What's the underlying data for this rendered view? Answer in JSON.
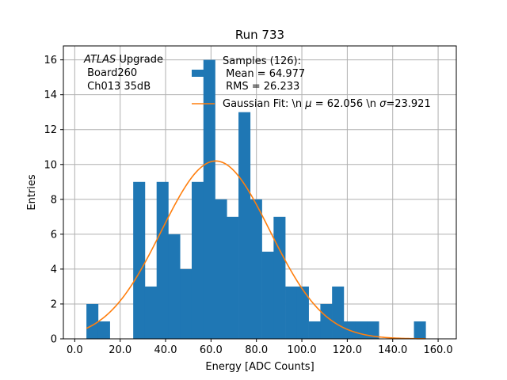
{
  "chart_data": {
    "type": "bar",
    "title": "Run 733",
    "xlabel": "Energy [ADC Counts]",
    "ylabel": "Entries",
    "xlim": [
      -5,
      168
    ],
    "ylim": [
      0,
      16.8
    ],
    "grid": true,
    "xticks": [
      0,
      20,
      40,
      60,
      80,
      100,
      120,
      140,
      160
    ],
    "xtick_labels": [
      "0.0",
      "20.0",
      "40.0",
      "60.0",
      "80.0",
      "100.0",
      "120.0",
      "140.0",
      "160.0"
    ],
    "yticks": [
      0,
      2,
      4,
      6,
      8,
      10,
      12,
      14,
      16
    ],
    "ytick_labels": [
      "0",
      "2",
      "4",
      "6",
      "8",
      "10",
      "12",
      "14",
      "16"
    ],
    "bin_width": 5.15,
    "bin_edges_start": 5.15,
    "histogram_counts": [
      2,
      1,
      0,
      0,
      9,
      3,
      9,
      6,
      4,
      9,
      16,
      8,
      7,
      13,
      8,
      5,
      7,
      3,
      3,
      1,
      2,
      3,
      1,
      1,
      1,
      0,
      0,
      0,
      1
    ],
    "annotation": {
      "line1_italic": "ATLAS",
      "line1_rest": " Upgrade",
      "line2": " Board260",
      "line3": " Ch013 35dB"
    },
    "legend": {
      "position": "top-center",
      "hist_label_lines": [
        "Samples (126):",
        " Mean = 64.977",
        " RMS = 26.233"
      ],
      "fit_label_prefix": "Gaussian Fit: \\n ",
      "fit_label_mu": "μ",
      "fit_label_mid": " = 62.056 \\n ",
      "fit_label_sigma": "σ",
      "fit_label_suffix": "=23.921"
    },
    "fit": {
      "amplitude": 10.2,
      "mu": 62.056,
      "sigma": 23.921,
      "x_range": [
        5.15,
        154.5
      ]
    },
    "colors": {
      "bars": "#1f77b4",
      "fit": "#ff7f0e",
      "grid": "#b0b0b0"
    }
  }
}
